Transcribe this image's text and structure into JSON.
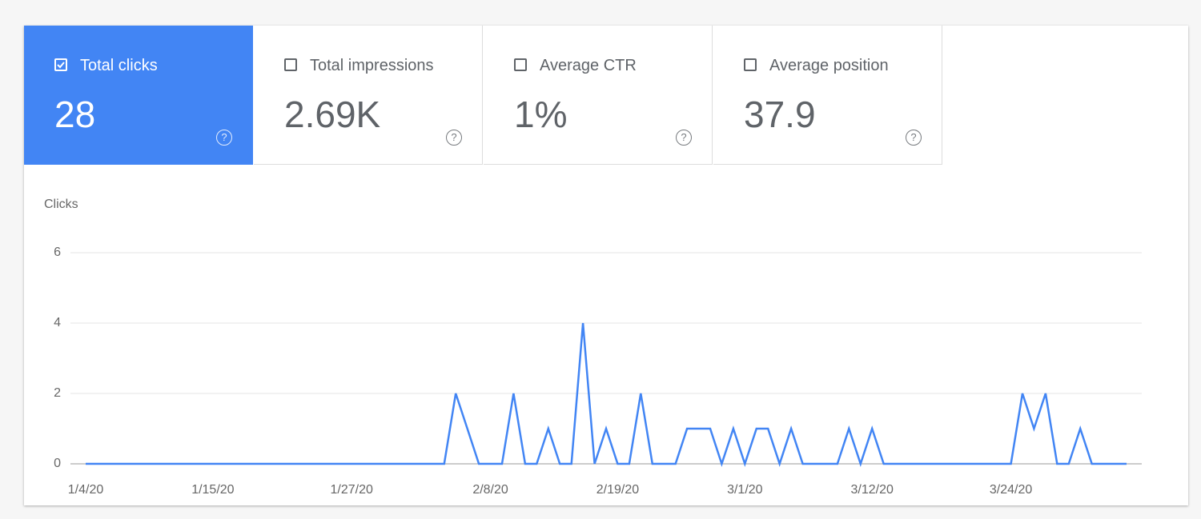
{
  "metrics": [
    {
      "label": "Total clicks",
      "value": "28",
      "checked": true
    },
    {
      "label": "Total impressions",
      "value": "2.69K",
      "checked": false
    },
    {
      "label": "Average CTR",
      "value": "1%",
      "checked": false
    },
    {
      "label": "Average position",
      "value": "37.9",
      "checked": false
    }
  ],
  "chart_data": {
    "type": "line",
    "y_label": "Clicks",
    "color": "#4285f4",
    "categories": [
      "1/4/20",
      null,
      null,
      null,
      null,
      null,
      null,
      null,
      null,
      null,
      null,
      "1/15/20",
      null,
      null,
      null,
      null,
      null,
      null,
      null,
      null,
      null,
      null,
      null,
      "1/27/20",
      null,
      null,
      null,
      null,
      null,
      null,
      null,
      null,
      null,
      null,
      null,
      "2/8/20",
      null,
      null,
      null,
      null,
      null,
      null,
      null,
      null,
      null,
      null,
      "2/19/20",
      null,
      null,
      null,
      null,
      null,
      null,
      null,
      null,
      null,
      null,
      "3/1/20",
      null,
      null,
      null,
      null,
      null,
      null,
      null,
      null,
      null,
      null,
      "3/12/20",
      null,
      null,
      null,
      null,
      null,
      null,
      null,
      null,
      null,
      null,
      null,
      "3/24/20",
      null,
      null,
      null,
      null,
      null,
      null,
      null,
      null,
      null,
      null
    ],
    "values": [
      0,
      0,
      0,
      0,
      0,
      0,
      0,
      0,
      0,
      0,
      0,
      0,
      0,
      0,
      0,
      0,
      0,
      0,
      0,
      0,
      0,
      0,
      0,
      0,
      0,
      0,
      0,
      0,
      0,
      0,
      0,
      0,
      2,
      1,
      0,
      0,
      0,
      2,
      0,
      0,
      1,
      0,
      0,
      4,
      0,
      1,
      0,
      0,
      2,
      0,
      0,
      0,
      1,
      1,
      1,
      0,
      1,
      0,
      1,
      1,
      0,
      1,
      0,
      0,
      0,
      0,
      1,
      0,
      1,
      0,
      0,
      0,
      0,
      0,
      0,
      0,
      0,
      0,
      0,
      0,
      0,
      2,
      1,
      2,
      0,
      0,
      1,
      0,
      0,
      0,
      0
    ],
    "ylim": [
      0,
      6
    ],
    "yticks": [
      0,
      2,
      4,
      6
    ],
    "grid": true
  }
}
